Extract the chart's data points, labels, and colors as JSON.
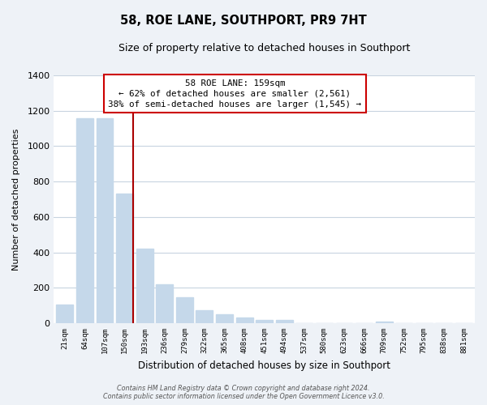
{
  "title": "58, ROE LANE, SOUTHPORT, PR9 7HT",
  "subtitle": "Size of property relative to detached houses in Southport",
  "xlabel": "Distribution of detached houses by size in Southport",
  "ylabel": "Number of detached properties",
  "categories": [
    "21sqm",
    "64sqm",
    "107sqm",
    "150sqm",
    "193sqm",
    "236sqm",
    "279sqm",
    "322sqm",
    "365sqm",
    "408sqm",
    "451sqm",
    "494sqm",
    "537sqm",
    "580sqm",
    "623sqm",
    "666sqm",
    "709sqm",
    "752sqm",
    "795sqm",
    "838sqm",
    "881sqm"
  ],
  "values": [
    105,
    1160,
    1160,
    730,
    420,
    220,
    148,
    75,
    50,
    30,
    18,
    18,
    0,
    0,
    0,
    0,
    8,
    0,
    0,
    0,
    0
  ],
  "bar_color": "#c5d8ea",
  "marker_index": 3,
  "marker_color": "#aa0000",
  "annotation_title": "58 ROE LANE: 159sqm",
  "annotation_line1": "← 62% of detached houses are smaller (2,561)",
  "annotation_line2": "38% of semi-detached houses are larger (1,545) →",
  "annotation_box_color": "#ffffff",
  "annotation_box_edge_color": "#cc0000",
  "ylim": [
    0,
    1400
  ],
  "yticks": [
    0,
    200,
    400,
    600,
    800,
    1000,
    1200,
    1400
  ],
  "footer_line1": "Contains HM Land Registry data © Crown copyright and database right 2024.",
  "footer_line2": "Contains public sector information licensed under the Open Government Licence v3.0.",
  "bg_color": "#eef2f7",
  "plot_bg_color": "#ffffff",
  "grid_color": "#c8d4e0"
}
